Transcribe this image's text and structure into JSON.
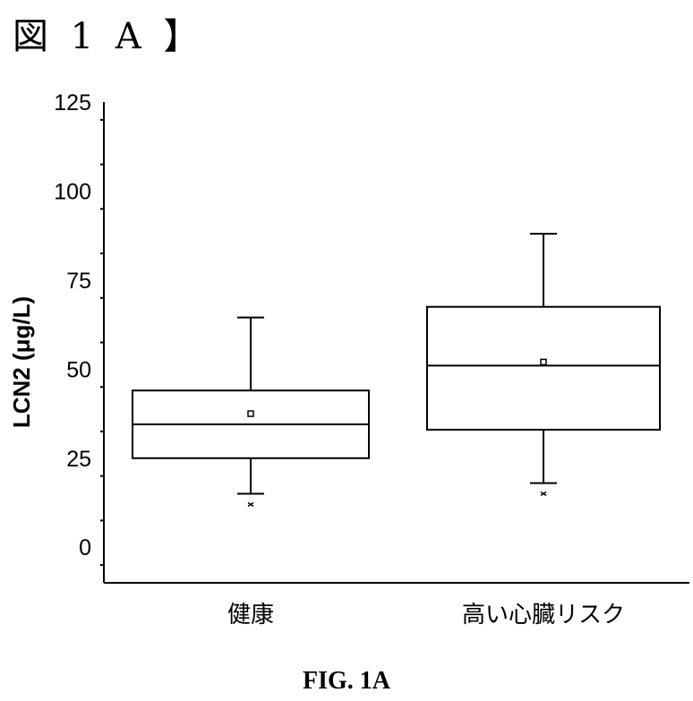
{
  "figure_label": "図 1 A 】",
  "caption": "FIG. 1A",
  "chart_data": {
    "type": "box",
    "ylabel": "LCN2 (μg/L)",
    "xlabel": "",
    "ylim": [
      -10,
      125
    ],
    "yticks": [
      0,
      25,
      50,
      75,
      100,
      125
    ],
    "categories": [
      "健康",
      "高い心臓リスク"
    ],
    "boxes": [
      {
        "category": "健康",
        "whisker_low": 15,
        "q1": 25,
        "median": 34.5,
        "q3": 44,
        "whisker_high": 64.5,
        "mean": 37.5,
        "outliers": [
          12
        ]
      },
      {
        "category": "高い心臓リスク",
        "whisker_low": 18,
        "q1": 33,
        "median": 51,
        "q3": 67.5,
        "whisker_high": 88,
        "mean": 52,
        "outliers": [
          15
        ]
      }
    ],
    "grid": false
  }
}
